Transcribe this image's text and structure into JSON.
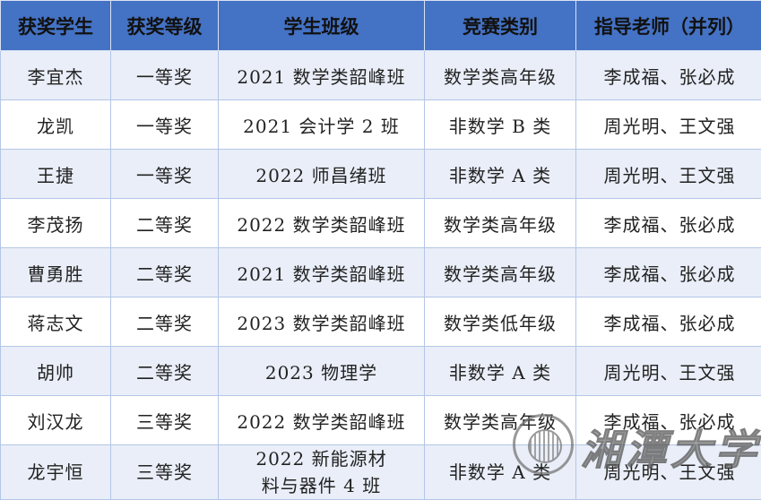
{
  "colors": {
    "header_bg": "#4472c4",
    "row_alt_bg": "#e9eef8",
    "border": "#b4c6e7"
  },
  "headers": [
    "获奖学生",
    "获奖等级",
    "学生班级",
    "竞赛类别",
    "指导老师（并列）"
  ],
  "rows": [
    [
      "李宜杰",
      "一等奖",
      "2021 数学类韶峰班",
      "数学类高年级",
      "李成福、张必成"
    ],
    [
      "龙凯",
      "一等奖",
      "2021 会计学 2 班",
      "非数学 B 类",
      "周光明、王文强"
    ],
    [
      "王捷",
      "一等奖",
      "2022 师昌绪班",
      "非数学 A 类",
      "周光明、王文强"
    ],
    [
      "李茂扬",
      "二等奖",
      "2022 数学类韶峰班",
      "数学类高年级",
      "李成福、张必成"
    ],
    [
      "曹勇胜",
      "二等奖",
      "2021 数学类韶峰班",
      "数学类高年级",
      "李成福、张必成"
    ],
    [
      "蒋志文",
      "二等奖",
      "2023 数学类韶峰班",
      "数学类低年级",
      "李成福、张必成"
    ],
    [
      "胡帅",
      "二等奖",
      "2023 物理学",
      "非数学 A 类",
      "周光明、王文强"
    ],
    [
      "刘汉龙",
      "三等奖",
      "2022 数学类韶峰班",
      "数学类高年级",
      "李成福、张必成"
    ],
    [
      "龙宇恒",
      "三等奖",
      "2022 新能源材料与器件 4 班",
      "非数学 A 类",
      "周光明、王文强"
    ]
  ],
  "watermark": {
    "text": "湘潭大学",
    "icon": "university-seal-icon"
  }
}
